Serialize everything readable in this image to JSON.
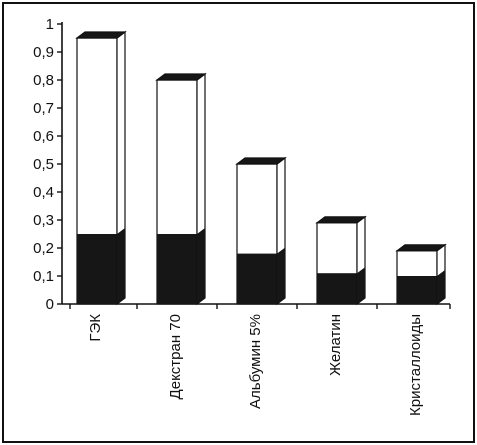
{
  "chart_data": {
    "type": "bar",
    "style": "3d-stacked",
    "categories": [
      "ГЭК",
      "Декстран 70",
      "Альбумин 5%",
      "Желатин",
      "Кристаллоиды"
    ],
    "series": [
      {
        "values": [
          0.25,
          0.25,
          0.18,
          0.11,
          0.1
        ],
        "color": "#161616"
      },
      {
        "values": [
          0.7,
          0.55,
          0.32,
          0.18,
          0.09
        ],
        "color": "#ffffff"
      }
    ],
    "totals": [
      0.95,
      0.8,
      0.5,
      0.29,
      0.19
    ],
    "ylim": [
      0,
      1
    ],
    "yticks": [
      "0",
      "0,1",
      "0,2",
      "0,3",
      "0,4",
      "0,5",
      "0,6",
      "0,7",
      "0,8",
      "0,9",
      "1"
    ],
    "title": "",
    "xlabel": "",
    "ylabel": "",
    "grid": false,
    "legend": "none"
  }
}
